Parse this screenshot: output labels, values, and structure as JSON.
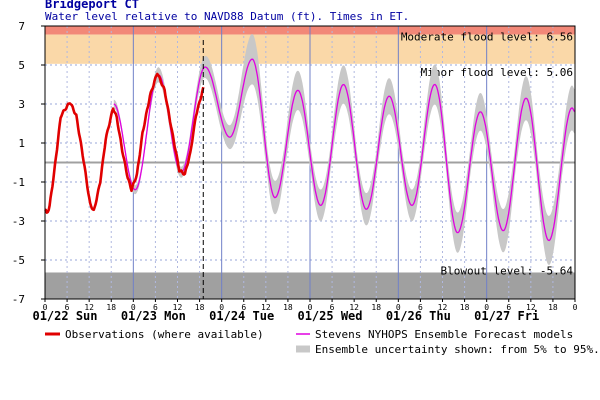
{
  "chart_data": {
    "type": "line",
    "title": "Bridgeport CT",
    "subtitle": "Water level relative to NAVD88 Datum (ft). Times in ET.",
    "ylim": [
      -7,
      7
    ],
    "xlim": [
      0,
      144
    ],
    "yticks": [
      -7,
      -5,
      -3,
      -1,
      1,
      3,
      5,
      7
    ],
    "x_minor_ticks": [
      {
        "x": 0,
        "label": "0"
      },
      {
        "x": 6,
        "label": "6"
      },
      {
        "x": 12,
        "label": "12"
      },
      {
        "x": 18,
        "label": "18"
      },
      {
        "x": 24,
        "label": "0"
      },
      {
        "x": 30,
        "label": "6"
      },
      {
        "x": 36,
        "label": "12"
      },
      {
        "x": 42,
        "label": "18"
      },
      {
        "x": 48,
        "label": "0"
      },
      {
        "x": 54,
        "label": "6"
      },
      {
        "x": 60,
        "label": "12"
      },
      {
        "x": 66,
        "label": "18"
      },
      {
        "x": 72,
        "label": "0"
      },
      {
        "x": 78,
        "label": "6"
      },
      {
        "x": 84,
        "label": "12"
      },
      {
        "x": 90,
        "label": "18"
      },
      {
        "x": 96,
        "label": "0"
      },
      {
        "x": 102,
        "label": "6"
      },
      {
        "x": 108,
        "label": "12"
      },
      {
        "x": 114,
        "label": "18"
      },
      {
        "x": 120,
        "label": "0"
      },
      {
        "x": 126,
        "label": "6"
      },
      {
        "x": 132,
        "label": "12"
      },
      {
        "x": 138,
        "label": "18"
      },
      {
        "x": 144,
        "label": "0"
      }
    ],
    "day_labels": [
      {
        "x": 0,
        "label": "01/22 Sun"
      },
      {
        "x": 24,
        "label": "01/23 Mon"
      },
      {
        "x": 48,
        "label": "01/24 Tue"
      },
      {
        "x": 72,
        "label": "01/25 Wed"
      },
      {
        "x": 96,
        "label": "01/26 Thu"
      },
      {
        "x": 120,
        "label": "01/27 Fri"
      }
    ],
    "now_x": 43,
    "grid": true,
    "thresholds": [
      {
        "name": "moderate",
        "label": "Moderate flood level: 6.56",
        "value": 6.56,
        "color": "#f28878"
      },
      {
        "name": "minor",
        "label": "Minor flood level: 5.06",
        "value": 5.06,
        "color": "#fad8a8"
      },
      {
        "name": "blowout",
        "label": "Blowout level: -5.64",
        "value": -5.64,
        "color": "#a0a0a0"
      }
    ],
    "zero_line": 0,
    "series": [
      {
        "name": "Observations (where available)",
        "color": "#e00000",
        "points": [
          [
            0,
            -2.4
          ],
          [
            0.5,
            -2.6
          ],
          [
            1.2,
            -2.3
          ],
          [
            2.5,
            -0.5
          ],
          [
            4.3,
            2.4
          ],
          [
            6.8,
            3.1
          ],
          [
            8.5,
            2.4
          ],
          [
            10.5,
            0.1
          ],
          [
            12.2,
            -2.1
          ],
          [
            13.3,
            -2.5
          ],
          [
            15,
            -1.0
          ],
          [
            16.5,
            1.2
          ],
          [
            18.5,
            2.8
          ],
          [
            19.5,
            2.3
          ],
          [
            21,
            0.6
          ],
          [
            22.5,
            -0.8
          ],
          [
            23.5,
            -1.4
          ],
          [
            25,
            -0.6
          ],
          [
            26.5,
            1.5
          ],
          [
            28.5,
            3.4
          ],
          [
            30.5,
            4.6
          ],
          [
            32.5,
            3.7
          ],
          [
            34.5,
            1.6
          ],
          [
            36.5,
            -0.4
          ],
          [
            38.0,
            -0.6
          ],
          [
            39.5,
            0.5
          ],
          [
            41,
            2.4
          ],
          [
            43,
            3.8
          ]
        ]
      },
      {
        "name": "Stevens NYHOPS Ensemble Forecast models",
        "color": "#e000e0",
        "extrema": [
          [
            18.7,
            3.0
          ],
          [
            24.5,
            -1.4
          ],
          [
            30.8,
            4.5
          ],
          [
            37.0,
            -0.5
          ],
          [
            43.5,
            4.9
          ],
          [
            50.2,
            1.3
          ],
          [
            56.3,
            5.3
          ],
          [
            62.5,
            -1.8
          ],
          [
            68.7,
            3.7
          ],
          [
            74.9,
            -2.2
          ],
          [
            81.1,
            4.0
          ],
          [
            87.3,
            -2.4
          ],
          [
            93.5,
            3.4
          ],
          [
            99.7,
            -2.2
          ],
          [
            105.9,
            4.0
          ],
          [
            112.1,
            -3.6
          ],
          [
            118.3,
            2.6
          ],
          [
            124.5,
            -3.5
          ],
          [
            130.7,
            3.3
          ],
          [
            136.9,
            -4.0
          ],
          [
            143.2,
            2.8
          ],
          [
            144,
            2.6
          ]
        ],
        "start_x": 18.7
      }
    ],
    "uncertainty_band": {
      "name": "Ensemble uncertainty shown: from 5% to 95%.",
      "color": "#c8c8c8",
      "half_width": [
        [
          18.7,
          0.15
        ],
        [
          43,
          0.3
        ],
        [
          50,
          0.5
        ],
        [
          56,
          0.7
        ],
        [
          75,
          0.6
        ],
        [
          100,
          0.6
        ],
        [
          144,
          0.8
        ]
      ]
    },
    "legend": {
      "placement": "bottom",
      "items": [
        {
          "label": "Observations (where available)",
          "color": "#e00000",
          "style": "line"
        },
        {
          "label": "Stevens NYHOPS Ensemble Forecast models",
          "color": "#e000e0",
          "style": "thin-line"
        },
        {
          "label": "Ensemble uncertainty shown: from 5% to 95%.",
          "color": "#c8c8c8",
          "style": "thick-line"
        }
      ]
    }
  }
}
